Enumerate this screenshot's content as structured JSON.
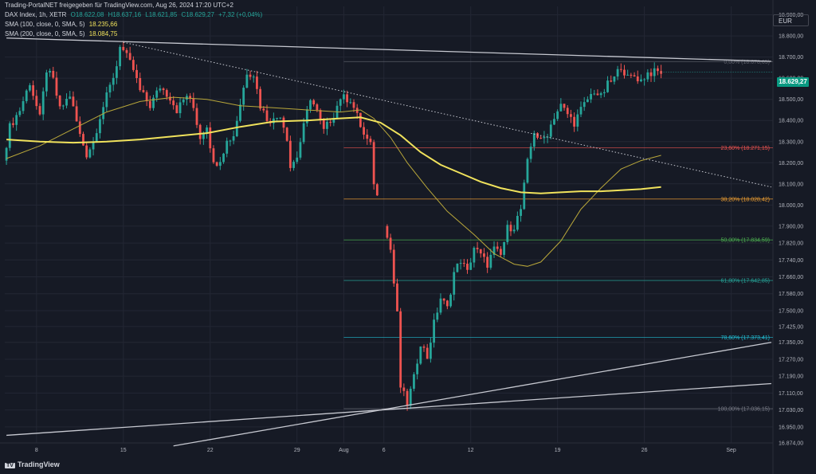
{
  "header": {
    "line1": "Trading-PortalNET freigegeben für TradingView.com, Aug 26, 2024 17:20 UTC+2",
    "symbol": "DAX Index, 1h, XETR",
    "ohlc": [
      "O18.622,08",
      "H18.637,16",
      "L18.621,85",
      "C18.629,27",
      "+7,32 (+0,04%)"
    ],
    "sma100_label": "SMA (100, close, 0, SMA, 5)",
    "sma100_value": "18.235,66",
    "sma200_label": "SMA (200, close, 0, SMA, 5)",
    "sma200_value": "18.084,75"
  },
  "currency": "EUR",
  "current_price_label": "18.629,27",
  "logo_text": "TradingView",
  "colors": {
    "background": "#161a25",
    "up": "#26a69a",
    "down": "#ef5350",
    "sma100": "#b9a73a",
    "sma200": "#f0e25c",
    "trendline": "#c7c9d1"
  },
  "chart_data": {
    "type": "candlestick",
    "timeframe": "1h",
    "ylim": [
      16874,
      18940
    ],
    "y_ticks": [
      18900,
      18800,
      18700,
      18600,
      18500,
      18400,
      18300,
      18200,
      18100,
      18000,
      17900,
      17820,
      17740,
      17660,
      17580,
      17500,
      17425,
      17350,
      17270,
      17190,
      17110,
      17030,
      16950,
      16874
    ],
    "y_tick_labels": [
      "18.900,00",
      "18.800,00",
      "18.700,00",
      "18.600,00",
      "18.500,00",
      "18.400,00",
      "18.300,00",
      "18.200,00",
      "18.100,00",
      "18.000,00",
      "17.900,00",
      "17.820,00",
      "17.740,00",
      "17.660,00",
      "17.580,00",
      "17.500,00",
      "17.425,00",
      "17.350,00",
      "17.270,00",
      "17.190,00",
      "17.110,00",
      "17.030,00",
      "16.950,00",
      "16.874,00"
    ],
    "x_labels": [
      "8",
      "15",
      "22",
      "29",
      "Aug",
      "6",
      "12",
      "19",
      "26",
      "Sep"
    ],
    "x_label_index": [
      9,
      35,
      61,
      87,
      101,
      113,
      139,
      165,
      191,
      217
    ],
    "total_slots": 230,
    "last_index": 196,
    "price_anchors": [
      [
        0,
        18210
      ],
      [
        2,
        18370
      ],
      [
        5,
        18450
      ],
      [
        8,
        18580
      ],
      [
        11,
        18410
      ],
      [
        13,
        18640
      ],
      [
        15,
        18590
      ],
      [
        17,
        18450
      ],
      [
        20,
        18520
      ],
      [
        23,
        18330
      ],
      [
        25,
        18240
      ],
      [
        27,
        18300
      ],
      [
        29,
        18420
      ],
      [
        32,
        18560
      ],
      [
        34,
        18660
      ],
      [
        35,
        18760
      ],
      [
        37,
        18700
      ],
      [
        39,
        18640
      ],
      [
        41,
        18540
      ],
      [
        44,
        18470
      ],
      [
        47,
        18560
      ],
      [
        50,
        18510
      ],
      [
        52,
        18450
      ],
      [
        55,
        18520
      ],
      [
        57,
        18460
      ],
      [
        59,
        18320
      ],
      [
        61,
        18380
      ],
      [
        63,
        18190
      ],
      [
        65,
        18220
      ],
      [
        67,
        18300
      ],
      [
        69,
        18330
      ],
      [
        71,
        18480
      ],
      [
        73,
        18630
      ],
      [
        75,
        18620
      ],
      [
        77,
        18470
      ],
      [
        79,
        18410
      ],
      [
        81,
        18400
      ],
      [
        83,
        18430
      ],
      [
        85,
        18320
      ],
      [
        86,
        18180
      ],
      [
        88,
        18230
      ],
      [
        90,
        18370
      ],
      [
        92,
        18510
      ],
      [
        94,
        18440
      ],
      [
        96,
        18350
      ],
      [
        99,
        18430
      ],
      [
        101,
        18510
      ],
      [
        104,
        18500
      ],
      [
        106,
        18420
      ],
      [
        108,
        18330
      ],
      [
        110,
        18280
      ],
      [
        111,
        18110
      ],
      [
        114,
        17900
      ],
      [
        116,
        17790
      ],
      [
        117,
        17630
      ],
      [
        118,
        17480
      ],
      [
        119,
        17140
      ],
      [
        121,
        17060
      ],
      [
        123,
        17180
      ],
      [
        125,
        17350
      ],
      [
        127,
        17280
      ],
      [
        129,
        17440
      ],
      [
        131,
        17560
      ],
      [
        133,
        17510
      ],
      [
        135,
        17680
      ],
      [
        137,
        17740
      ],
      [
        139,
        17680
      ],
      [
        141,
        17800
      ],
      [
        143,
        17760
      ],
      [
        145,
        17720
      ],
      [
        147,
        17790
      ],
      [
        149,
        17760
      ],
      [
        151,
        17890
      ],
      [
        153,
        17900
      ],
      [
        155,
        17980
      ],
      [
        157,
        18200
      ],
      [
        159,
        18350
      ],
      [
        161,
        18300
      ],
      [
        163,
        18340
      ],
      [
        165,
        18420
      ],
      [
        167,
        18470
      ],
      [
        169,
        18430
      ],
      [
        171,
        18390
      ],
      [
        173,
        18450
      ],
      [
        175,
        18500
      ],
      [
        177,
        18540
      ],
      [
        179,
        18510
      ],
      [
        181,
        18570
      ],
      [
        183,
        18600
      ],
      [
        185,
        18660
      ],
      [
        187,
        18600
      ],
      [
        189,
        18610
      ],
      [
        191,
        18590
      ],
      [
        193,
        18625
      ],
      [
        196,
        18629
      ]
    ],
    "sma100": [
      [
        0,
        18220
      ],
      [
        10,
        18280
      ],
      [
        20,
        18360
      ],
      [
        30,
        18440
      ],
      [
        40,
        18490
      ],
      [
        50,
        18510
      ],
      [
        60,
        18500
      ],
      [
        70,
        18470
      ],
      [
        80,
        18460
      ],
      [
        90,
        18450
      ],
      [
        100,
        18440
      ],
      [
        106,
        18450
      ],
      [
        110,
        18410
      ],
      [
        115,
        18320
      ],
      [
        120,
        18200
      ],
      [
        126,
        18080
      ],
      [
        132,
        17970
      ],
      [
        140,
        17860
      ],
      [
        146,
        17770
      ],
      [
        152,
        17720
      ],
      [
        156,
        17710
      ],
      [
        160,
        17730
      ],
      [
        166,
        17830
      ],
      [
        172,
        17980
      ],
      [
        178,
        18080
      ],
      [
        184,
        18170
      ],
      [
        190,
        18210
      ],
      [
        196,
        18235
      ]
    ],
    "sma200": [
      [
        0,
        18310
      ],
      [
        10,
        18300
      ],
      [
        20,
        18295
      ],
      [
        30,
        18300
      ],
      [
        40,
        18310
      ],
      [
        50,
        18325
      ],
      [
        60,
        18340
      ],
      [
        70,
        18370
      ],
      [
        80,
        18395
      ],
      [
        90,
        18400
      ],
      [
        100,
        18410
      ],
      [
        106,
        18415
      ],
      [
        112,
        18390
      ],
      [
        118,
        18330
      ],
      [
        124,
        18250
      ],
      [
        130,
        18190
      ],
      [
        136,
        18150
      ],
      [
        142,
        18110
      ],
      [
        148,
        18080
      ],
      [
        154,
        18060
      ],
      [
        160,
        18055
      ],
      [
        166,
        18060
      ],
      [
        172,
        18065
      ],
      [
        178,
        18065
      ],
      [
        184,
        18070
      ],
      [
        190,
        18075
      ],
      [
        196,
        18085
      ]
    ],
    "fibonacci": {
      "start_index": 101,
      "levels": [
        {
          "label": "0,00% (18.678,65)",
          "value": 18678.65,
          "color": "#5d606b"
        },
        {
          "label": "23,60% (18.271,15)",
          "value": 18271.15,
          "color": "#ef5350"
        },
        {
          "label": "38,20% (18.028,42)",
          "value": 18028.42,
          "color": "#f0a032"
        },
        {
          "label": "50,00% (17.834,59)",
          "value": 17834.59,
          "color": "#4caf50"
        },
        {
          "label": "61,80% (17.642,85)",
          "value": 17642.85,
          "color": "#26a69a"
        },
        {
          "label": "78,60% (17.373,41)",
          "value": 17373.41,
          "color": "#22c0d6"
        },
        {
          "label": "100,00% (17.036,15)",
          "value": 17036.15,
          "color": "#787b86"
        }
      ]
    },
    "trendlines": [
      {
        "style": "solid",
        "from": [
          0,
          18790
        ],
        "to": [
          229,
          18680
        ]
      },
      {
        "style": "dotted",
        "from": [
          35,
          18770
        ],
        "to": [
          229,
          18085
        ]
      },
      {
        "style": "solid",
        "from": [
          0,
          16910
        ],
        "to": [
          229,
          17155
        ]
      },
      {
        "style": "solid",
        "from": [
          50,
          16860
        ],
        "to": [
          229,
          17350
        ]
      }
    ]
  }
}
